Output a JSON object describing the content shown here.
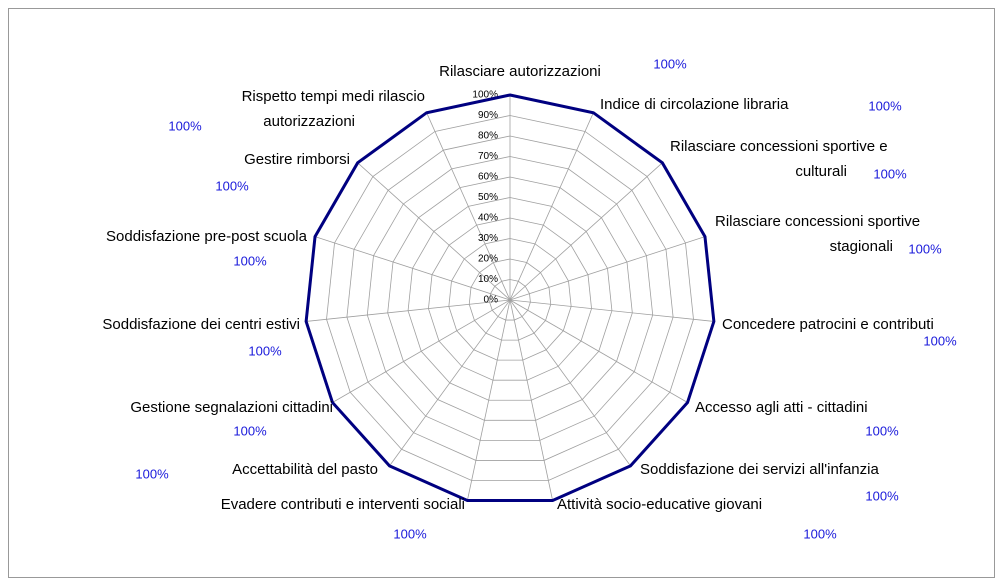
{
  "chart_data": {
    "type": "radar",
    "categories": [
      "Rilasciare autorizzazioni",
      "Indice di circolazione libraria",
      "Rilasciare concessioni sportive e culturali",
      "Rilasciare concessioni sportive stagionali",
      "Concedere patrocini e contributi",
      "Accesso agli atti - cittadini",
      "Soddisfazione dei servizi all'infanzia",
      "Attività socio-educative giovani",
      "Evadere contributi e interventi sociali",
      "Accettabilità del pasto",
      "Gestione segnalazioni cittadini",
      "Soddisfazione dei centri estivi",
      "Soddisfazione pre-post scuola",
      "Gestire rimborsi",
      "Rispetto tempi medi rilascio autorizzazioni"
    ],
    "values": [
      100,
      100,
      100,
      100,
      100,
      100,
      100,
      100,
      100,
      100,
      100,
      100,
      100,
      100,
      100
    ],
    "value_labels": [
      "100%",
      "100%",
      "100%",
      "100%",
      "100%",
      "100%",
      "100%",
      "100%",
      "100%",
      "100%",
      "100%",
      "100%",
      "100%",
      "100%",
      "100%"
    ],
    "color": "#000080",
    "ylim": [
      0,
      100
    ],
    "yticks": [
      {
        "value": 0,
        "label": "0%"
      },
      {
        "value": 10,
        "label": "10%"
      },
      {
        "value": 20,
        "label": "20%"
      },
      {
        "value": 30,
        "label": "30%"
      },
      {
        "value": 40,
        "label": "40%"
      },
      {
        "value": 50,
        "label": "50%"
      },
      {
        "value": 60,
        "label": "60%"
      },
      {
        "value": 70,
        "label": "70%"
      },
      {
        "value": 80,
        "label": "80%"
      },
      {
        "value": 90,
        "label": "90%"
      },
      {
        "value": 100,
        "label": "100%"
      }
    ],
    "grid": true
  }
}
